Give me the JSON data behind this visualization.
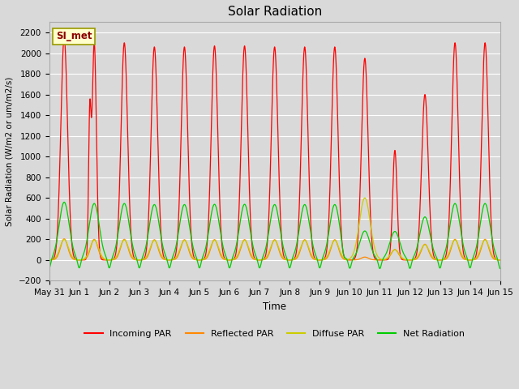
{
  "title": "Solar Radiation",
  "ylabel": "Solar Radiation (W/m2 or um/m2/s)",
  "xlabel": "Time",
  "ylim": [
    -200,
    2300
  ],
  "yticks": [
    -200,
    0,
    200,
    400,
    600,
    800,
    1000,
    1200,
    1400,
    1600,
    1800,
    2000,
    2200
  ],
  "bg_color": "#d9d9d9",
  "legend_label": "SI_met",
  "legend_bg": "#ffffcc",
  "legend_border": "#999900",
  "line_colors": {
    "incoming": "#ff0000",
    "reflected": "#ff8800",
    "diffuse": "#cccc00",
    "net": "#00cc00"
  },
  "line_labels": [
    "Incoming PAR",
    "Reflected PAR",
    "Diffuse PAR",
    "Net Radiation"
  ],
  "n_days": 15,
  "x_tick_labels": [
    "May 31",
    "Jun 1",
    "Jun 2",
    "Jun 3",
    "Jun 4",
    "Jun 5",
    "Jun 6",
    "Jun 7",
    "Jun 8",
    "Jun 9",
    "Jun 10",
    "Jun 11",
    "Jun 12",
    "Jun 13",
    "Jun 14",
    "Jun 15"
  ],
  "points_per_day": 200
}
